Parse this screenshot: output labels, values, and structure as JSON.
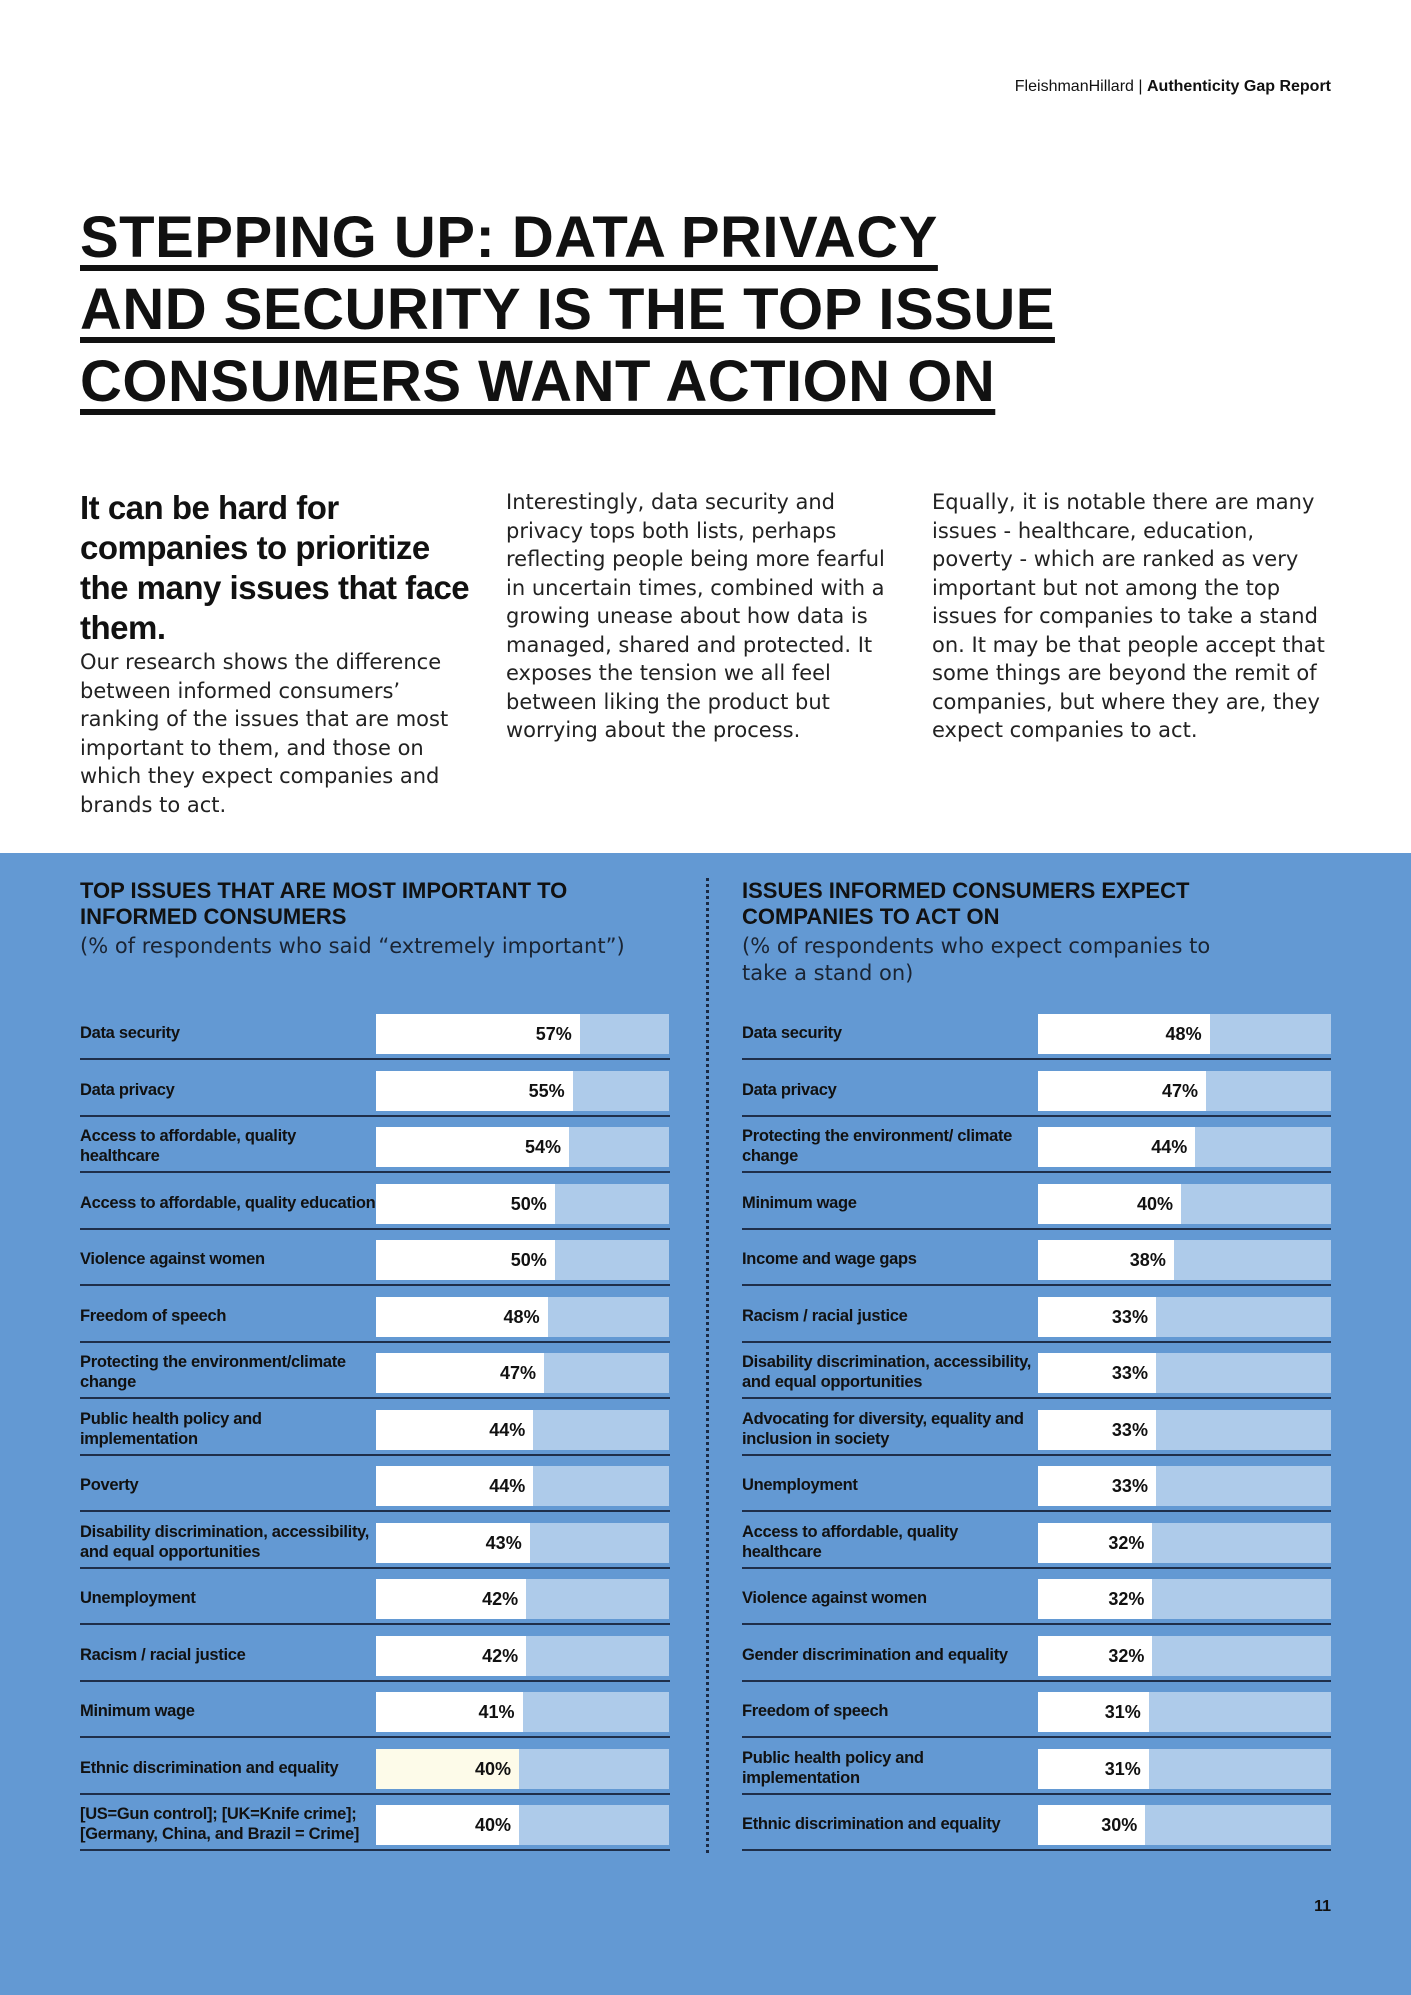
{
  "header": {
    "brand": "FleishmanHillard",
    "separator": " | ",
    "report": "Authenticity Gap Report"
  },
  "title_lines": [
    "STEPPING UP: DATA PRIVACY",
    "AND SECURITY IS THE TOP ISSUE",
    "CONSUMERS WANT ACTION ON"
  ],
  "intro": {
    "lead": "It can be hard for companies to prioritize the many issues that face them.",
    "col1": "Our research shows the difference between informed consumers’ ranking of the issues that are most important to them, and those on which they expect companies and brands to act.",
    "col2": "Interestingly, data security and privacy tops both lists, perhaps reflecting people being more fearful in uncertain times, combined with a growing unease about how data is managed, shared and protected. It exposes the tension we all feel between liking the product but worrying about the process.",
    "col3": "Equally, it is notable there are many issues - healthcare, education, poverty - which are ranked as very important but not among the top issues for companies to take a stand on. It may be that people accept that some things are beyond the remit of companies, but where they are, they expect companies to act."
  },
  "chart_data": [
    {
      "type": "bar",
      "orientation": "horizontal",
      "title": "TOP ISSUES THAT ARE MOST IMPORTANT TO INFORMED CONSUMERS",
      "subtitle": "(% of respondents who said “extremely important”)",
      "xlim": [
        0,
        100
      ],
      "value_suffix": "%",
      "highlight_index": 13,
      "categories": [
        "Data security",
        "Data privacy",
        "Access to affordable, quality healthcare",
        "Access to affordable, quality education",
        "Violence against women",
        "Freedom of speech",
        "Protecting the environment/climate change",
        "Public health policy and implementation",
        "Poverty",
        "Disability discrimination, accessibility, and equal opportunities",
        "Unemployment",
        "Racism / racial justice",
        "Minimum wage",
        "Ethnic discrimination and equality",
        "[US=Gun control]; [UK=Knife crime]; [Germany, China, and Brazil = Crime]"
      ],
      "values": [
        57,
        55,
        54,
        50,
        50,
        48,
        47,
        44,
        44,
        43,
        42,
        42,
        41,
        40,
        40
      ]
    },
    {
      "type": "bar",
      "orientation": "horizontal",
      "title": "ISSUES INFORMED CONSUMERS EXPECT COMPANIES TO ACT ON",
      "subtitle": "(% of respondents who expect companies to take a stand on)",
      "xlim": [
        0,
        100
      ],
      "value_suffix": "%",
      "categories": [
        "Data security",
        "Data privacy",
        "Protecting the environment/ climate change",
        "Minimum wage",
        "Income and wage gaps",
        "Racism / racial justice",
        "Disability discrimination, accessibility, and equal opportunities",
        "Advocating for diversity, equality and inclusion in society",
        "Unemployment",
        "Access to affordable, quality healthcare",
        "Violence against women",
        "Gender discrimination and equality",
        "Freedom of speech",
        "Public health policy and implementation",
        "Ethnic discrimination and equality"
      ],
      "values": [
        48,
        47,
        44,
        40,
        38,
        33,
        33,
        33,
        33,
        32,
        32,
        32,
        31,
        31,
        30
      ]
    }
  ],
  "page_number": "11",
  "colors": {
    "panel": "#6399d3",
    "track": "#aecbea",
    "fill": "#ffffff",
    "highlight_fill": "#fdfbe9",
    "text": "#111111"
  }
}
